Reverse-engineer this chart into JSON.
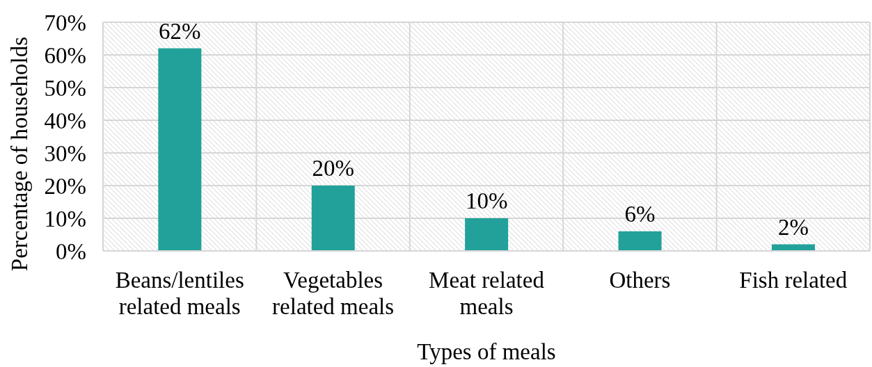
{
  "chart_data": {
    "type": "bar",
    "xlabel": "Types of meals",
    "ylabel": "Percentage of households",
    "categories": [
      "Beans/lentiles related meals",
      "Vegetables related meals",
      "Meat related meals",
      "Others",
      "Fish related"
    ],
    "values": [
      62,
      20,
      10,
      6,
      2
    ],
    "value_labels": [
      "62%",
      "20%",
      "10%",
      "6%",
      "2%"
    ],
    "color": "#21a199",
    "ylim": [
      0,
      70
    ],
    "yticks": [
      {
        "value": 0,
        "label": "0%"
      },
      {
        "value": 10,
        "label": "10%"
      },
      {
        "value": 20,
        "label": "20%"
      },
      {
        "value": 30,
        "label": "30%"
      },
      {
        "value": 40,
        "label": "40%"
      },
      {
        "value": 50,
        "label": "50%"
      },
      {
        "value": 60,
        "label": "60%"
      },
      {
        "value": 70,
        "label": "70%"
      }
    ],
    "grid": true
  }
}
